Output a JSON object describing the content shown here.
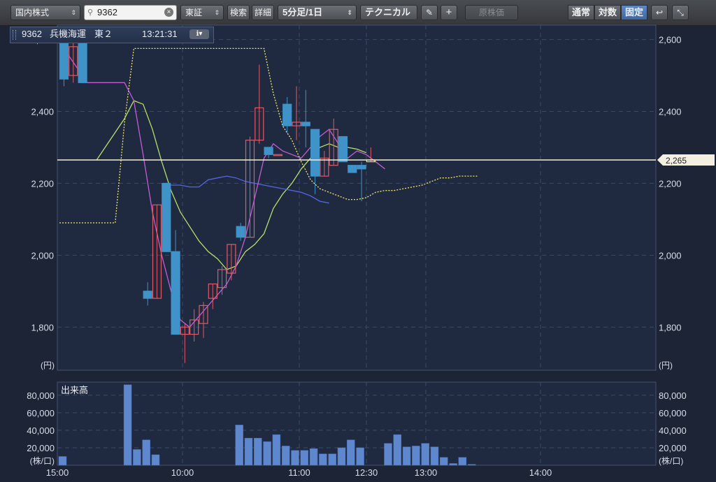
{
  "toolbar": {
    "market": "国内株式",
    "search_value": "9362",
    "exchange": "東証",
    "search_btn": "検索",
    "detail_btn": "詳細",
    "interval": "5分足/1日",
    "technical": "テクニカル",
    "pencil_icon": "pencil-icon",
    "plus_icon": "plus-icon",
    "base_price": "原株価",
    "scale_normal": "通常",
    "scale_log": "対数",
    "scale_fixed": "固定",
    "undo_icon": "undo-icon",
    "collapse_icon": "collapse-icon"
  },
  "header": {
    "code": "9362",
    "name": "兵機海運",
    "market": "東２",
    "time": "13:21:31"
  },
  "colors": {
    "background": "#1c2435",
    "grid": "#3a4a66",
    "up_candle": "#e05a66",
    "down_candle": "#3f93c8",
    "ma_fast": "#c45cd6",
    "ma_mid": "#b6e06a",
    "ma_slow": "#5566e0",
    "dotted": "#f4e86a",
    "price_line": "#f3f0d6",
    "volume": "#5f87cd"
  },
  "chart_data": [
    {
      "type": "candlestick",
      "title": "",
      "unit": "(円)",
      "ylim": [
        1680,
        2640
      ],
      "yticks": [
        1800,
        2000,
        2200,
        2400,
        2600
      ],
      "ytick_labels": [
        "1,800",
        "2,000",
        "2,200",
        "2,400",
        "2,600"
      ],
      "xticks": [
        "15:00",
        "10:00",
        "11:00",
        "12:30",
        "13:00",
        "14:00"
      ],
      "current_price": 2265,
      "current_price_label": "2,265",
      "candles": [
        {
          "o": 2590,
          "h": 2590,
          "l": 2470,
          "c": 2490
        },
        {
          "o": 2500,
          "h": 2590,
          "l": 2480,
          "c": 2580
        },
        {
          "o": 2590,
          "h": 2590,
          "l": 2480,
          "c": 2480
        },
        {
          "o": 1900,
          "h": 1925,
          "l": 1860,
          "c": 1880
        },
        {
          "o": 1880,
          "h": 2140,
          "l": 1880,
          "c": 2140
        },
        {
          "o": 2200,
          "h": 2200,
          "l": 2010,
          "c": 2010
        },
        {
          "o": 2010,
          "h": 2070,
          "l": 1780,
          "c": 1780
        },
        {
          "o": 1780,
          "h": 1810,
          "l": 1700,
          "c": 1800
        },
        {
          "o": 1780,
          "h": 1850,
          "l": 1760,
          "c": 1820
        },
        {
          "o": 1810,
          "h": 1870,
          "l": 1770,
          "c": 1860
        },
        {
          "o": 1880,
          "h": 1920,
          "l": 1850,
          "c": 1920
        },
        {
          "o": 1910,
          "h": 1970,
          "l": 1890,
          "c": 1960
        },
        {
          "o": 1950,
          "h": 2030,
          "l": 1930,
          "c": 2030
        },
        {
          "o": 2080,
          "h": 2090,
          "l": 2040,
          "c": 2050
        },
        {
          "o": 2050,
          "h": 2330,
          "l": 2050,
          "c": 2320
        },
        {
          "o": 2320,
          "h": 2530,
          "l": 2310,
          "c": 2410
        },
        {
          "o": 2300,
          "h": 2300,
          "l": 2270,
          "c": 2280
        },
        {
          "o": 2280,
          "h": 2280,
          "l": 2280,
          "c": 2280
        },
        {
          "o": 2420,
          "h": 2440,
          "l": 2340,
          "c": 2360
        },
        {
          "o": 2360,
          "h": 2470,
          "l": 2320,
          "c": 2370
        },
        {
          "o": 2370,
          "h": 2460,
          "l": 2300,
          "c": 2360
        },
        {
          "o": 2350,
          "h": 2350,
          "l": 2170,
          "c": 2220
        },
        {
          "o": 2220,
          "h": 2290,
          "l": 2220,
          "c": 2270
        },
        {
          "o": 2250,
          "h": 2380,
          "l": 2250,
          "c": 2350
        },
        {
          "o": 2330,
          "h": 2330,
          "l": 2260,
          "c": 2260
        },
        {
          "o": 2250,
          "h": 2250,
          "l": 2230,
          "c": 2230
        },
        {
          "o": 2250,
          "h": 2260,
          "l": 2150,
          "c": 2240
        },
        {
          "o": 2260,
          "h": 2300,
          "l": 2260,
          "c": 2265
        }
      ],
      "candle_slots": [
        0,
        1,
        2,
        9,
        10,
        11,
        12,
        13,
        14,
        15,
        16,
        17,
        18,
        19,
        20,
        21,
        22,
        23,
        24,
        25,
        26,
        27,
        28,
        29,
        30,
        31,
        32,
        33
      ],
      "lines": {
        "ma_fast": [
          [
            0,
            2590
          ],
          [
            1,
            2555
          ],
          [
            3,
            2480
          ],
          [
            7,
            2480
          ],
          [
            8,
            2430
          ],
          [
            9,
            2280
          ],
          [
            10,
            2120
          ],
          [
            11,
            2000
          ],
          [
            12,
            1900
          ],
          [
            13,
            1820
          ],
          [
            14,
            1800
          ],
          [
            16,
            1860
          ],
          [
            18,
            1920
          ],
          [
            19,
            1970
          ],
          [
            20,
            2050
          ],
          [
            21,
            2160
          ],
          [
            22,
            2270
          ],
          [
            23,
            2310
          ],
          [
            24,
            2290
          ],
          [
            26,
            2270
          ],
          [
            28,
            2330
          ],
          [
            29,
            2350
          ],
          [
            30,
            2310
          ],
          [
            31,
            2270
          ],
          [
            32,
            2290
          ],
          [
            33,
            2280
          ],
          [
            34,
            2260
          ],
          [
            35,
            2240
          ]
        ],
        "ma_mid": [
          [
            4,
            2265
          ],
          [
            7,
            2380
          ],
          [
            8,
            2430
          ],
          [
            9,
            2420
          ],
          [
            10,
            2350
          ],
          [
            11,
            2260
          ],
          [
            12,
            2180
          ],
          [
            13,
            2120
          ],
          [
            14,
            2080
          ],
          [
            15,
            2040
          ],
          [
            16,
            2010
          ],
          [
            17,
            1990
          ],
          [
            18,
            1960
          ],
          [
            19,
            1970
          ],
          [
            20,
            2010
          ],
          [
            21,
            2030
          ],
          [
            22,
            2060
          ],
          [
            23,
            2130
          ],
          [
            24,
            2170
          ],
          [
            25,
            2200
          ],
          [
            26,
            2240
          ],
          [
            27,
            2270
          ],
          [
            28,
            2300
          ],
          [
            29,
            2310
          ],
          [
            30,
            2300
          ],
          [
            31,
            2300
          ],
          [
            32,
            2295
          ],
          [
            33,
            2285
          ]
        ],
        "ma_slow": [
          [
            12,
            2195
          ],
          [
            13,
            2195
          ],
          [
            14,
            2190
          ],
          [
            15,
            2190
          ],
          [
            16,
            2210
          ],
          [
            17,
            2215
          ],
          [
            18,
            2220
          ],
          [
            19,
            2215
          ],
          [
            20,
            2205
          ],
          [
            21,
            2200
          ],
          [
            22,
            2195
          ],
          [
            23,
            2190
          ],
          [
            24,
            2185
          ],
          [
            25,
            2180
          ],
          [
            26,
            2175
          ],
          [
            27,
            2165
          ],
          [
            28,
            2150
          ],
          [
            29,
            2145
          ]
        ],
        "dotted": [
          [
            0,
            2090
          ],
          [
            6,
            2090
          ],
          [
            7,
            2370
          ],
          [
            8,
            2575
          ],
          [
            9,
            2575
          ],
          [
            10,
            2575
          ],
          [
            11,
            2575
          ],
          [
            12,
            2575
          ],
          [
            13,
            2575
          ],
          [
            14,
            2575
          ],
          [
            15,
            2575
          ],
          [
            16,
            2575
          ],
          [
            17,
            2575
          ],
          [
            18,
            2575
          ],
          [
            19,
            2575
          ],
          [
            20,
            2575
          ],
          [
            21,
            2575
          ],
          [
            22,
            2575
          ],
          [
            23,
            2450
          ],
          [
            24,
            2360
          ],
          [
            25,
            2320
          ],
          [
            26,
            2260
          ],
          [
            27,
            2210
          ],
          [
            28,
            2185
          ],
          [
            29,
            2175
          ],
          [
            30,
            2165
          ],
          [
            31,
            2155
          ],
          [
            32,
            2155
          ],
          [
            33,
            2160
          ],
          [
            34,
            2175
          ],
          [
            35,
            2180
          ],
          [
            36,
            2180
          ],
          [
            37,
            2185
          ],
          [
            38,
            2190
          ],
          [
            39,
            2195
          ],
          [
            40,
            2205
          ],
          [
            41,
            2215
          ],
          [
            42,
            2215
          ],
          [
            43,
            2220
          ],
          [
            44,
            2220
          ],
          [
            45,
            2220
          ]
        ]
      }
    },
    {
      "type": "bar",
      "title": "出来高",
      "unit": "(株/口)",
      "ylim": [
        0,
        95000
      ],
      "yticks": [
        20000,
        40000,
        60000,
        80000
      ],
      "ytick_labels": [
        "20,000",
        "40,000",
        "60,000",
        "80,000"
      ],
      "values": [
        10000,
        0,
        0,
        0,
        0,
        0,
        0,
        92000,
        18000,
        29000,
        12000,
        0,
        0,
        0,
        0,
        0,
        0,
        0,
        0,
        46000,
        31000,
        31000,
        27000,
        35000,
        22000,
        17000,
        17000,
        19000,
        13000,
        13000,
        20000,
        29000,
        20000,
        0,
        0,
        25000,
        35000,
        21000,
        22000,
        25000,
        21000,
        9000,
        2000,
        9000,
        1000
      ]
    }
  ]
}
